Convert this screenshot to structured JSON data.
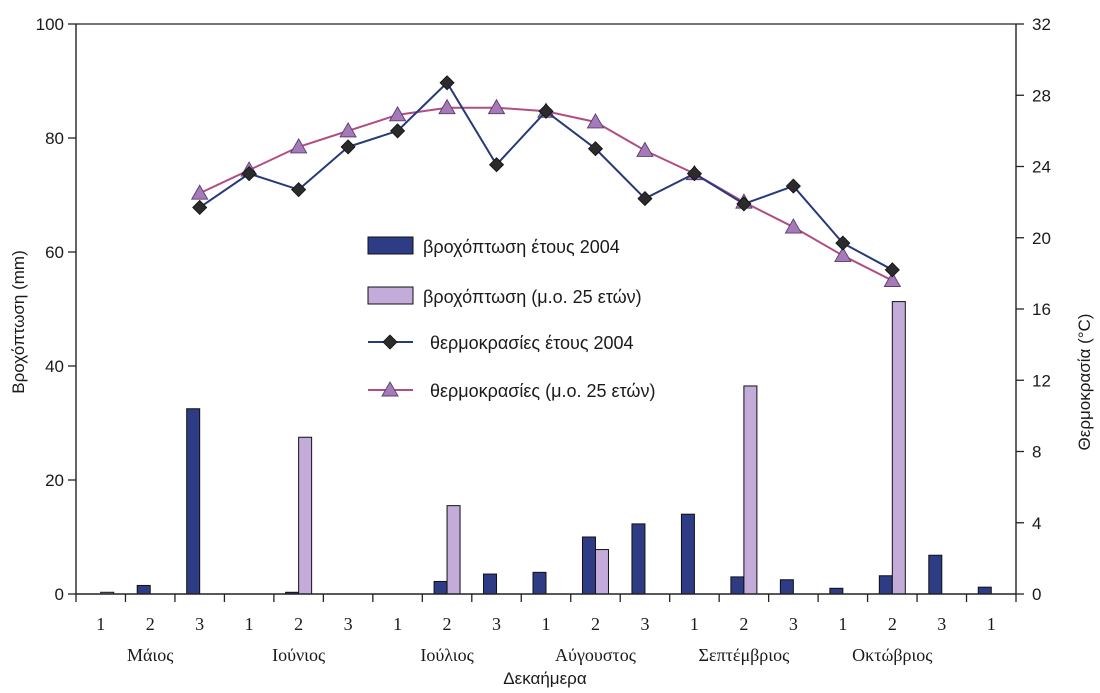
{
  "chart_data": {
    "type": "bar",
    "xlabel": "Δεκαήμερα",
    "ylabel_left": "Βροχόπτωση (mm)",
    "ylabel_right": "Θερμοκρασία (°C)",
    "ylim_left": [
      0,
      100
    ],
    "yticks_left": [
      "0",
      "20",
      "40",
      "60",
      "80",
      "100"
    ],
    "ylim_right": [
      0,
      32
    ],
    "yticks_right": [
      "0",
      "4",
      "8",
      "12",
      "16",
      "20",
      "24",
      "28",
      "32"
    ],
    "grid": false,
    "legend_position": "center",
    "categories": [
      "1",
      "2",
      "3",
      "1",
      "2",
      "3",
      "1",
      "2",
      "3",
      "1",
      "2",
      "3",
      "1",
      "2",
      "3",
      "1",
      "2",
      "3",
      "1"
    ],
    "months": [
      {
        "label": "Μάιος",
        "center_index": 1
      },
      {
        "label": "Ιούνιος",
        "center_index": 4
      },
      {
        "label": "Ιούλιος",
        "center_index": 7
      },
      {
        "label": "Αύγουστος",
        "center_index": 10
      },
      {
        "label": "Σεπτέμβριος",
        "center_index": 13
      },
      {
        "label": "Οκτώβριος",
        "center_index": 16
      }
    ],
    "series": [
      {
        "name": "βροχόπτωση έτους 2004",
        "kind": "bar",
        "axis": "left",
        "color": "#2e3c86",
        "values": [
          0,
          1.5,
          32.5,
          0,
          0.3,
          0,
          0,
          2.2,
          3.5,
          3.8,
          10,
          12.3,
          14,
          3,
          2.5,
          1,
          3.2,
          6.8,
          1.2
        ]
      },
      {
        "name": "βροχόπτωση (μ.ο. 25 ετών)",
        "kind": "bar",
        "axis": "left",
        "color": "#c3acd9",
        "values": [
          0.3,
          0,
          0,
          0,
          27.5,
          0,
          0,
          15.5,
          0,
          0,
          7.8,
          0,
          0,
          36.5,
          0,
          0,
          51.3,
          0,
          0
        ]
      },
      {
        "name": "θερμοκρασίες έτους 2004",
        "kind": "line",
        "axis": "right",
        "marker": "diamond",
        "color": "#263a7a",
        "values": [
          null,
          null,
          21.7,
          23.6,
          22.7,
          25.1,
          26.0,
          28.7,
          24.1,
          27.1,
          25.0,
          22.2,
          23.6,
          21.9,
          22.9,
          19.7,
          18.2,
          null,
          null
        ]
      },
      {
        "name": "θερμοκρασίες  (μ.ο. 25 ετών)",
        "kind": "line",
        "axis": "right",
        "marker": "triangle",
        "color": "#b04e84",
        "marker_color": "#a67ab8",
        "values": [
          null,
          null,
          22.5,
          23.8,
          25.1,
          26.0,
          26.9,
          27.3,
          27.3,
          27.1,
          26.5,
          24.9,
          23.6,
          22.0,
          20.6,
          19.0,
          17.6,
          null,
          null
        ]
      }
    ]
  }
}
